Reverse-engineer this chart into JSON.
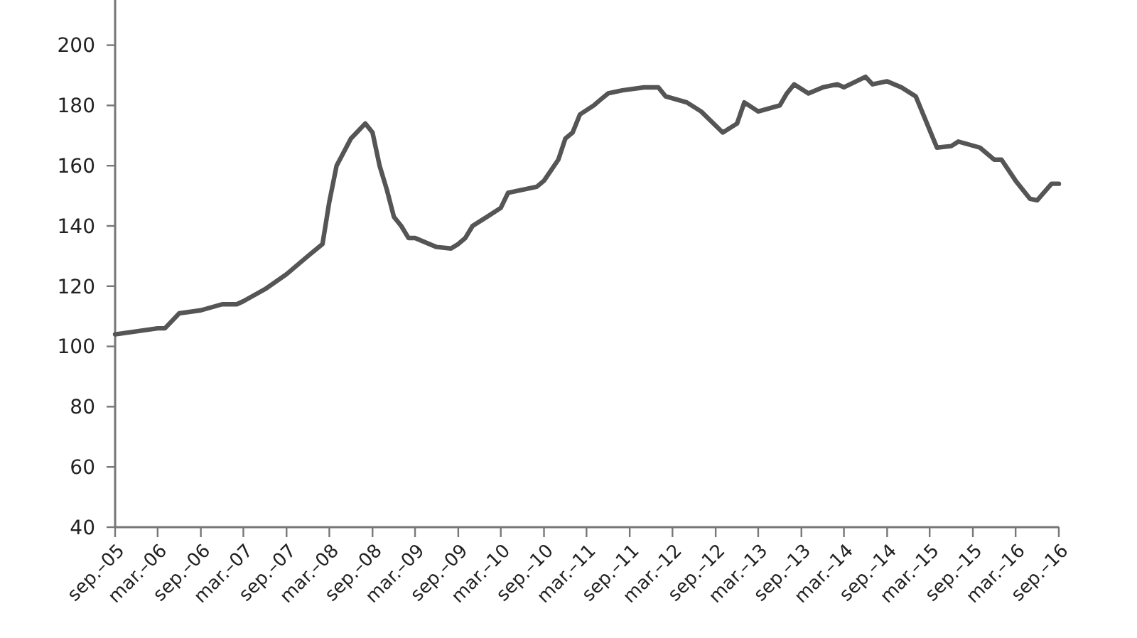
{
  "chart_data": {
    "type": "line",
    "x": [
      "2005-09",
      "2005-12",
      "2006-03",
      "2006-04",
      "2006-06",
      "2006-09",
      "2006-12",
      "2007-02",
      "2007-03",
      "2007-06",
      "2007-09",
      "2007-12",
      "2008-02",
      "2008-03",
      "2008-04",
      "2008-06",
      "2008-08",
      "2008-09",
      "2008-10",
      "2008-11",
      "2008-12",
      "2009-01",
      "2009-02",
      "2009-03",
      "2009-05",
      "2009-06",
      "2009-08",
      "2009-09",
      "2009-10",
      "2009-11",
      "2010-01",
      "2010-03",
      "2010-04",
      "2010-06",
      "2010-08",
      "2010-09",
      "2010-11",
      "2010-12",
      "2011-01",
      "2011-02",
      "2011-04",
      "2011-05",
      "2011-06",
      "2011-08",
      "2011-11",
      "2012-01",
      "2012-02",
      "2012-05",
      "2012-07",
      "2012-10",
      "2012-12",
      "2013-01",
      "2013-03",
      "2013-06",
      "2013-07",
      "2013-08",
      "2013-10",
      "2013-12",
      "2014-02",
      "2014-03",
      "2014-06",
      "2014-07",
      "2014-09",
      "2014-11",
      "2015-01",
      "2015-04",
      "2015-06",
      "2015-07",
      "2015-10",
      "2015-12",
      "2016-01",
      "2016-03",
      "2016-05",
      "2016-06",
      "2016-08",
      "2016-09"
    ],
    "series": [
      {
        "color": "#555555",
        "values": [
          104,
          105,
          106,
          106,
          111,
          112,
          114,
          114,
          115,
          119,
          124,
          130,
          134,
          148,
          160,
          169,
          174,
          171,
          160,
          152,
          143,
          140,
          136,
          136,
          134,
          133,
          132.5,
          134,
          136,
          140,
          143,
          146,
          151,
          152,
          153,
          155,
          162,
          169,
          171,
          177,
          180,
          182,
          184,
          185,
          186,
          186,
          183,
          181,
          178,
          171,
          174,
          181,
          178,
          180,
          184,
          187,
          184,
          186,
          187,
          186,
          189.5,
          187,
          188,
          186,
          183,
          166,
          166.5,
          168,
          166,
          162,
          162,
          155,
          149,
          148.5,
          154,
          154
        ]
      }
    ],
    "xlim": [
      "2005-09",
      "2016-09"
    ],
    "xticks": [
      {
        "value": "2005-09",
        "label": "sep.–05"
      },
      {
        "value": "2006-03",
        "label": "mar.–06"
      },
      {
        "value": "2006-09",
        "label": "sep.–06"
      },
      {
        "value": "2007-03",
        "label": "mar.–07"
      },
      {
        "value": "2007-09",
        "label": "sep.–07"
      },
      {
        "value": "2008-03",
        "label": "mar.–08"
      },
      {
        "value": "2008-09",
        "label": "sep.–08"
      },
      {
        "value": "2009-03",
        "label": "mar.–09"
      },
      {
        "value": "2009-09",
        "label": "sep.–09"
      },
      {
        "value": "2010-03",
        "label": "mar.–10"
      },
      {
        "value": "2010-09",
        "label": "sep.–10"
      },
      {
        "value": "2011-03",
        "label": "mar.–11"
      },
      {
        "value": "2011-09",
        "label": "sep.–11"
      },
      {
        "value": "2012-03",
        "label": "mar.–12"
      },
      {
        "value": "2012-09",
        "label": "sep.–12"
      },
      {
        "value": "2013-03",
        "label": "mar.–13"
      },
      {
        "value": "2013-09",
        "label": "sep.–13"
      },
      {
        "value": "2014-03",
        "label": "mar.–14"
      },
      {
        "value": "2014-09",
        "label": "sep.–14"
      },
      {
        "value": "2015-03",
        "label": "mar.–15"
      },
      {
        "value": "2015-09",
        "label": "sep.–15"
      },
      {
        "value": "2016-03",
        "label": "mar.–16"
      },
      {
        "value": "2016-09",
        "label": "sep.–16"
      }
    ],
    "ylim": [
      40,
      215
    ],
    "yticks": [
      40,
      60,
      80,
      100,
      120,
      140,
      160,
      180,
      200
    ],
    "marker": "none",
    "line_style": "solid"
  }
}
